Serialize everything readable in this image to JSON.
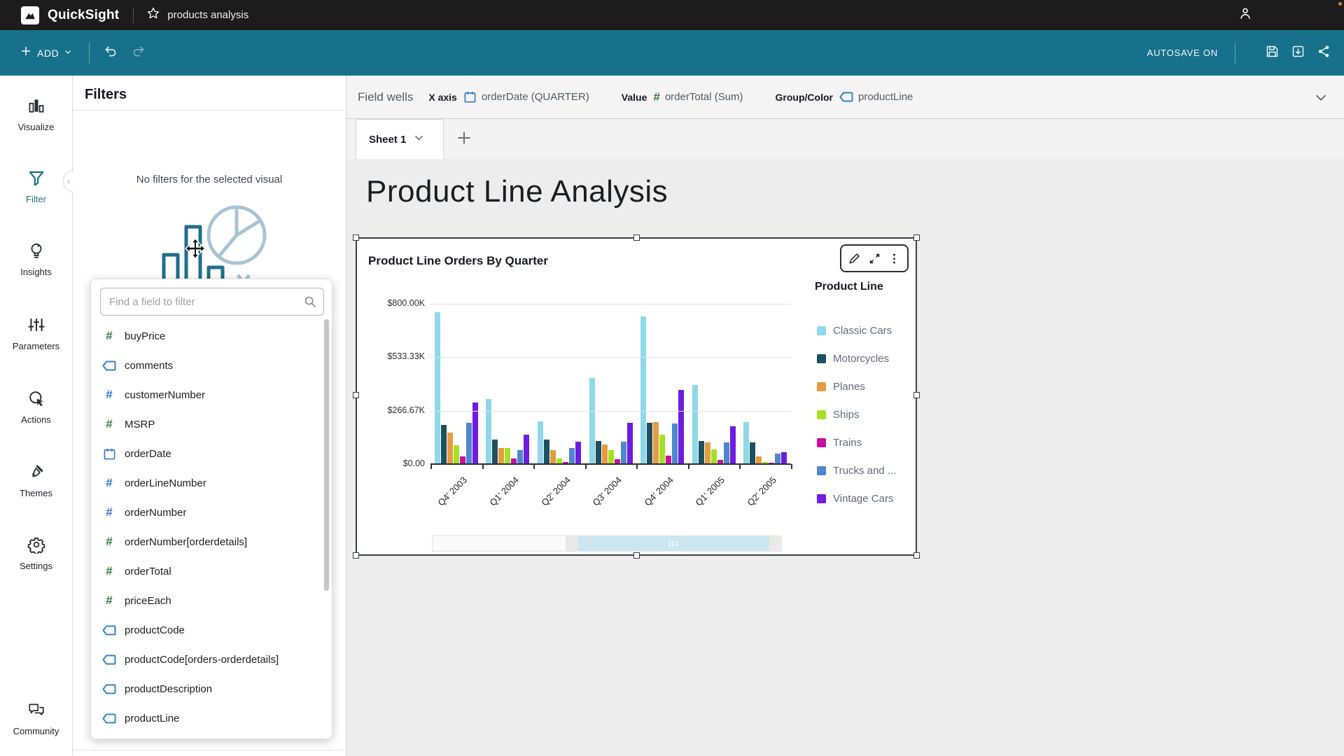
{
  "topbar": {
    "brand": "QuickSight",
    "doc_title": "products analysis"
  },
  "toolbar": {
    "add_label": "ADD",
    "autosave_label": "AUTOSAVE ON"
  },
  "sidebar": {
    "items": [
      {
        "label": "Visualize",
        "icon": "bar-chart-icon",
        "active": false
      },
      {
        "label": "Filter",
        "icon": "funnel-icon",
        "active": true
      },
      {
        "label": "Insights",
        "icon": "lightbulb-icon",
        "active": false
      },
      {
        "label": "Parameters",
        "icon": "sliders-icon",
        "active": false
      },
      {
        "label": "Actions",
        "icon": "cursor-click-icon",
        "active": false
      },
      {
        "label": "Themes",
        "icon": "paintbrush-icon",
        "active": false
      },
      {
        "label": "Settings",
        "icon": "gear-icon",
        "active": false
      },
      {
        "label": "Community",
        "icon": "chat-bubbles-icon",
        "active": false,
        "bottom": true
      }
    ]
  },
  "filters_panel": {
    "title": "Filters",
    "empty_message": "No filters for the selected visual"
  },
  "field_search": {
    "placeholder": "Find a field to filter",
    "fields": [
      {
        "name": "buyPrice",
        "icon": "numeric-icon",
        "variant": "green"
      },
      {
        "name": "comments",
        "icon": "string-icon",
        "variant": "blue"
      },
      {
        "name": "customerNumber",
        "icon": "numeric-icon",
        "variant": "blue"
      },
      {
        "name": "MSRP",
        "icon": "numeric-icon",
        "variant": "green"
      },
      {
        "name": "orderDate",
        "icon": "calendar-icon",
        "variant": "blue"
      },
      {
        "name": "orderLineNumber",
        "icon": "numeric-icon",
        "variant": "blue"
      },
      {
        "name": "orderNumber",
        "icon": "numeric-icon",
        "variant": "blue"
      },
      {
        "name": "orderNumber[orderdetails]",
        "icon": "numeric-icon",
        "variant": "green"
      },
      {
        "name": "orderTotal",
        "icon": "numeric-icon",
        "variant": "green"
      },
      {
        "name": "priceEach",
        "icon": "numeric-icon",
        "variant": "green"
      },
      {
        "name": "productCode",
        "icon": "string-icon",
        "variant": "blue"
      },
      {
        "name": "productCode[orders-orderdetails]",
        "icon": "string-icon",
        "variant": "blue"
      },
      {
        "name": "productDescription",
        "icon": "string-icon",
        "variant": "blue"
      },
      {
        "name": "productLine",
        "icon": "string-icon",
        "variant": "blue"
      }
    ]
  },
  "field_wells": {
    "label": "Field wells",
    "wells": [
      {
        "label": "X axis",
        "icon": "calendar-icon",
        "variant": "blue",
        "value": "orderDate (QUARTER)"
      },
      {
        "label": "Value",
        "icon": "numeric-icon",
        "variant": "green",
        "value": "orderTotal (Sum)"
      },
      {
        "label": "Group/Color",
        "icon": "string-icon",
        "variant": "blue",
        "value": "productLine"
      }
    ]
  },
  "sheet_tabs": {
    "active": "Sheet 1",
    "add_icon": "plus-icon"
  },
  "canvas": {
    "page_title": "Product Line Analysis"
  },
  "chart_data": {
    "type": "bar",
    "title": "Product Line Orders By Quarter",
    "legend_title": "Product Line",
    "legend_position": "right",
    "grid": true,
    "categories": [
      "Q4' 2003",
      "Q1' 2004",
      "Q2' 2004",
      "Q3' 2004",
      "Q4' 2004",
      "Q1' 2005",
      "Q2' 2005"
    ],
    "y_ticks": [
      "$0.00",
      "$266.67K",
      "$533.33K",
      "$800.00K"
    ],
    "ylim": [
      0,
      800
    ],
    "value_unit": "USD thousands (orderTotal Sum)",
    "series": [
      {
        "name": "Classic Cars",
        "color": "#8ed8e9",
        "values": [
          758,
          324,
          214,
          430,
          738,
          395,
          211
        ]
      },
      {
        "name": "Motorcycles",
        "color": "#1f5060",
        "values": [
          196,
          122,
          124,
          116,
          207,
          116,
          108
        ]
      },
      {
        "name": "Planes",
        "color": "#e49c40",
        "values": [
          157,
          79,
          70,
          98,
          211,
          108,
          39
        ]
      },
      {
        "name": "Ships",
        "color": "#a4e122",
        "values": [
          96,
          82,
          27,
          70,
          146,
          75,
          10
        ]
      },
      {
        "name": "Trains",
        "color": "#c70f9d",
        "values": [
          39,
          27,
          11,
          25,
          42,
          21,
          6
        ]
      },
      {
        "name": "Trucks and ...",
        "color": "#4f86d1",
        "values": [
          206,
          70,
          79,
          113,
          202,
          107,
          51
        ]
      },
      {
        "name": "Vintage Cars",
        "color": "#6e1ce2",
        "values": [
          306,
          148,
          113,
          205,
          369,
          187,
          58
        ]
      }
    ]
  }
}
